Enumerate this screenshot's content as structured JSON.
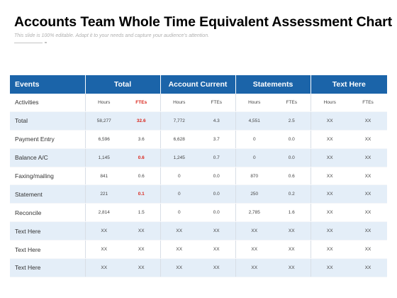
{
  "header": {
    "title": "Accounts Team Whole Time Equivalent Assessment Chart",
    "subtitle": "This slide is 100% editable. Adapt it to your needs and capture your audience's attention."
  },
  "colors": {
    "header_bg": "#1b64a9",
    "alt_row_bg": "#e4eef8",
    "highlight_text": "#d9261c"
  },
  "table": {
    "columns": [
      "Events",
      "Total",
      "Account Current",
      "Statements",
      "Text Here"
    ],
    "rows": [
      {
        "label": "Activities",
        "cells": [
          "Hours",
          "FTEs",
          "Hours",
          "FTEs",
          "Hours",
          "FTEs",
          "Hours",
          "FTEs"
        ],
        "highlight": [
          1
        ]
      },
      {
        "label": "Total",
        "cells": [
          "58,277",
          "32.6",
          "7,772",
          "4.3",
          "4,551",
          "2.5",
          "XX",
          "XX"
        ],
        "highlight": [
          1
        ]
      },
      {
        "label": "Payment Entry",
        "cells": [
          "6,596",
          "3.6",
          "6,628",
          "3.7",
          "0",
          "0.0",
          "XX",
          "XX"
        ],
        "highlight": []
      },
      {
        "label": "Balance A/C",
        "cells": [
          "1,145",
          "0.6",
          "1,245",
          "0.7",
          "0",
          "0.0",
          "XX",
          "XX"
        ],
        "highlight": [
          1
        ]
      },
      {
        "label": "Faxing/mailing",
        "cells": [
          "841",
          "0.6",
          "0",
          "0.0",
          "870",
          "0.6",
          "XX",
          "XX"
        ],
        "highlight": []
      },
      {
        "label": "Statement",
        "cells": [
          "221",
          "0.1",
          "0",
          "0.0",
          "250",
          "0.2",
          "XX",
          "XX"
        ],
        "highlight": [
          1
        ]
      },
      {
        "label": "Reconcile",
        "cells": [
          "2,814",
          "1.5",
          "0",
          "0.0",
          "2,785",
          "1.6",
          "XX",
          "XX"
        ],
        "highlight": []
      },
      {
        "label": "Text Here",
        "cells": [
          "XX",
          "XX",
          "XX",
          "XX",
          "XX",
          "XX",
          "XX",
          "XX"
        ],
        "highlight": []
      },
      {
        "label": "Text Here",
        "cells": [
          "XX",
          "XX",
          "XX",
          "XX",
          "XX",
          "XX",
          "XX",
          "XX"
        ],
        "highlight": []
      },
      {
        "label": "Text Here",
        "cells": [
          "XX",
          "XX",
          "XX",
          "XX",
          "XX",
          "XX",
          "XX",
          "XX"
        ],
        "highlight": []
      }
    ]
  }
}
